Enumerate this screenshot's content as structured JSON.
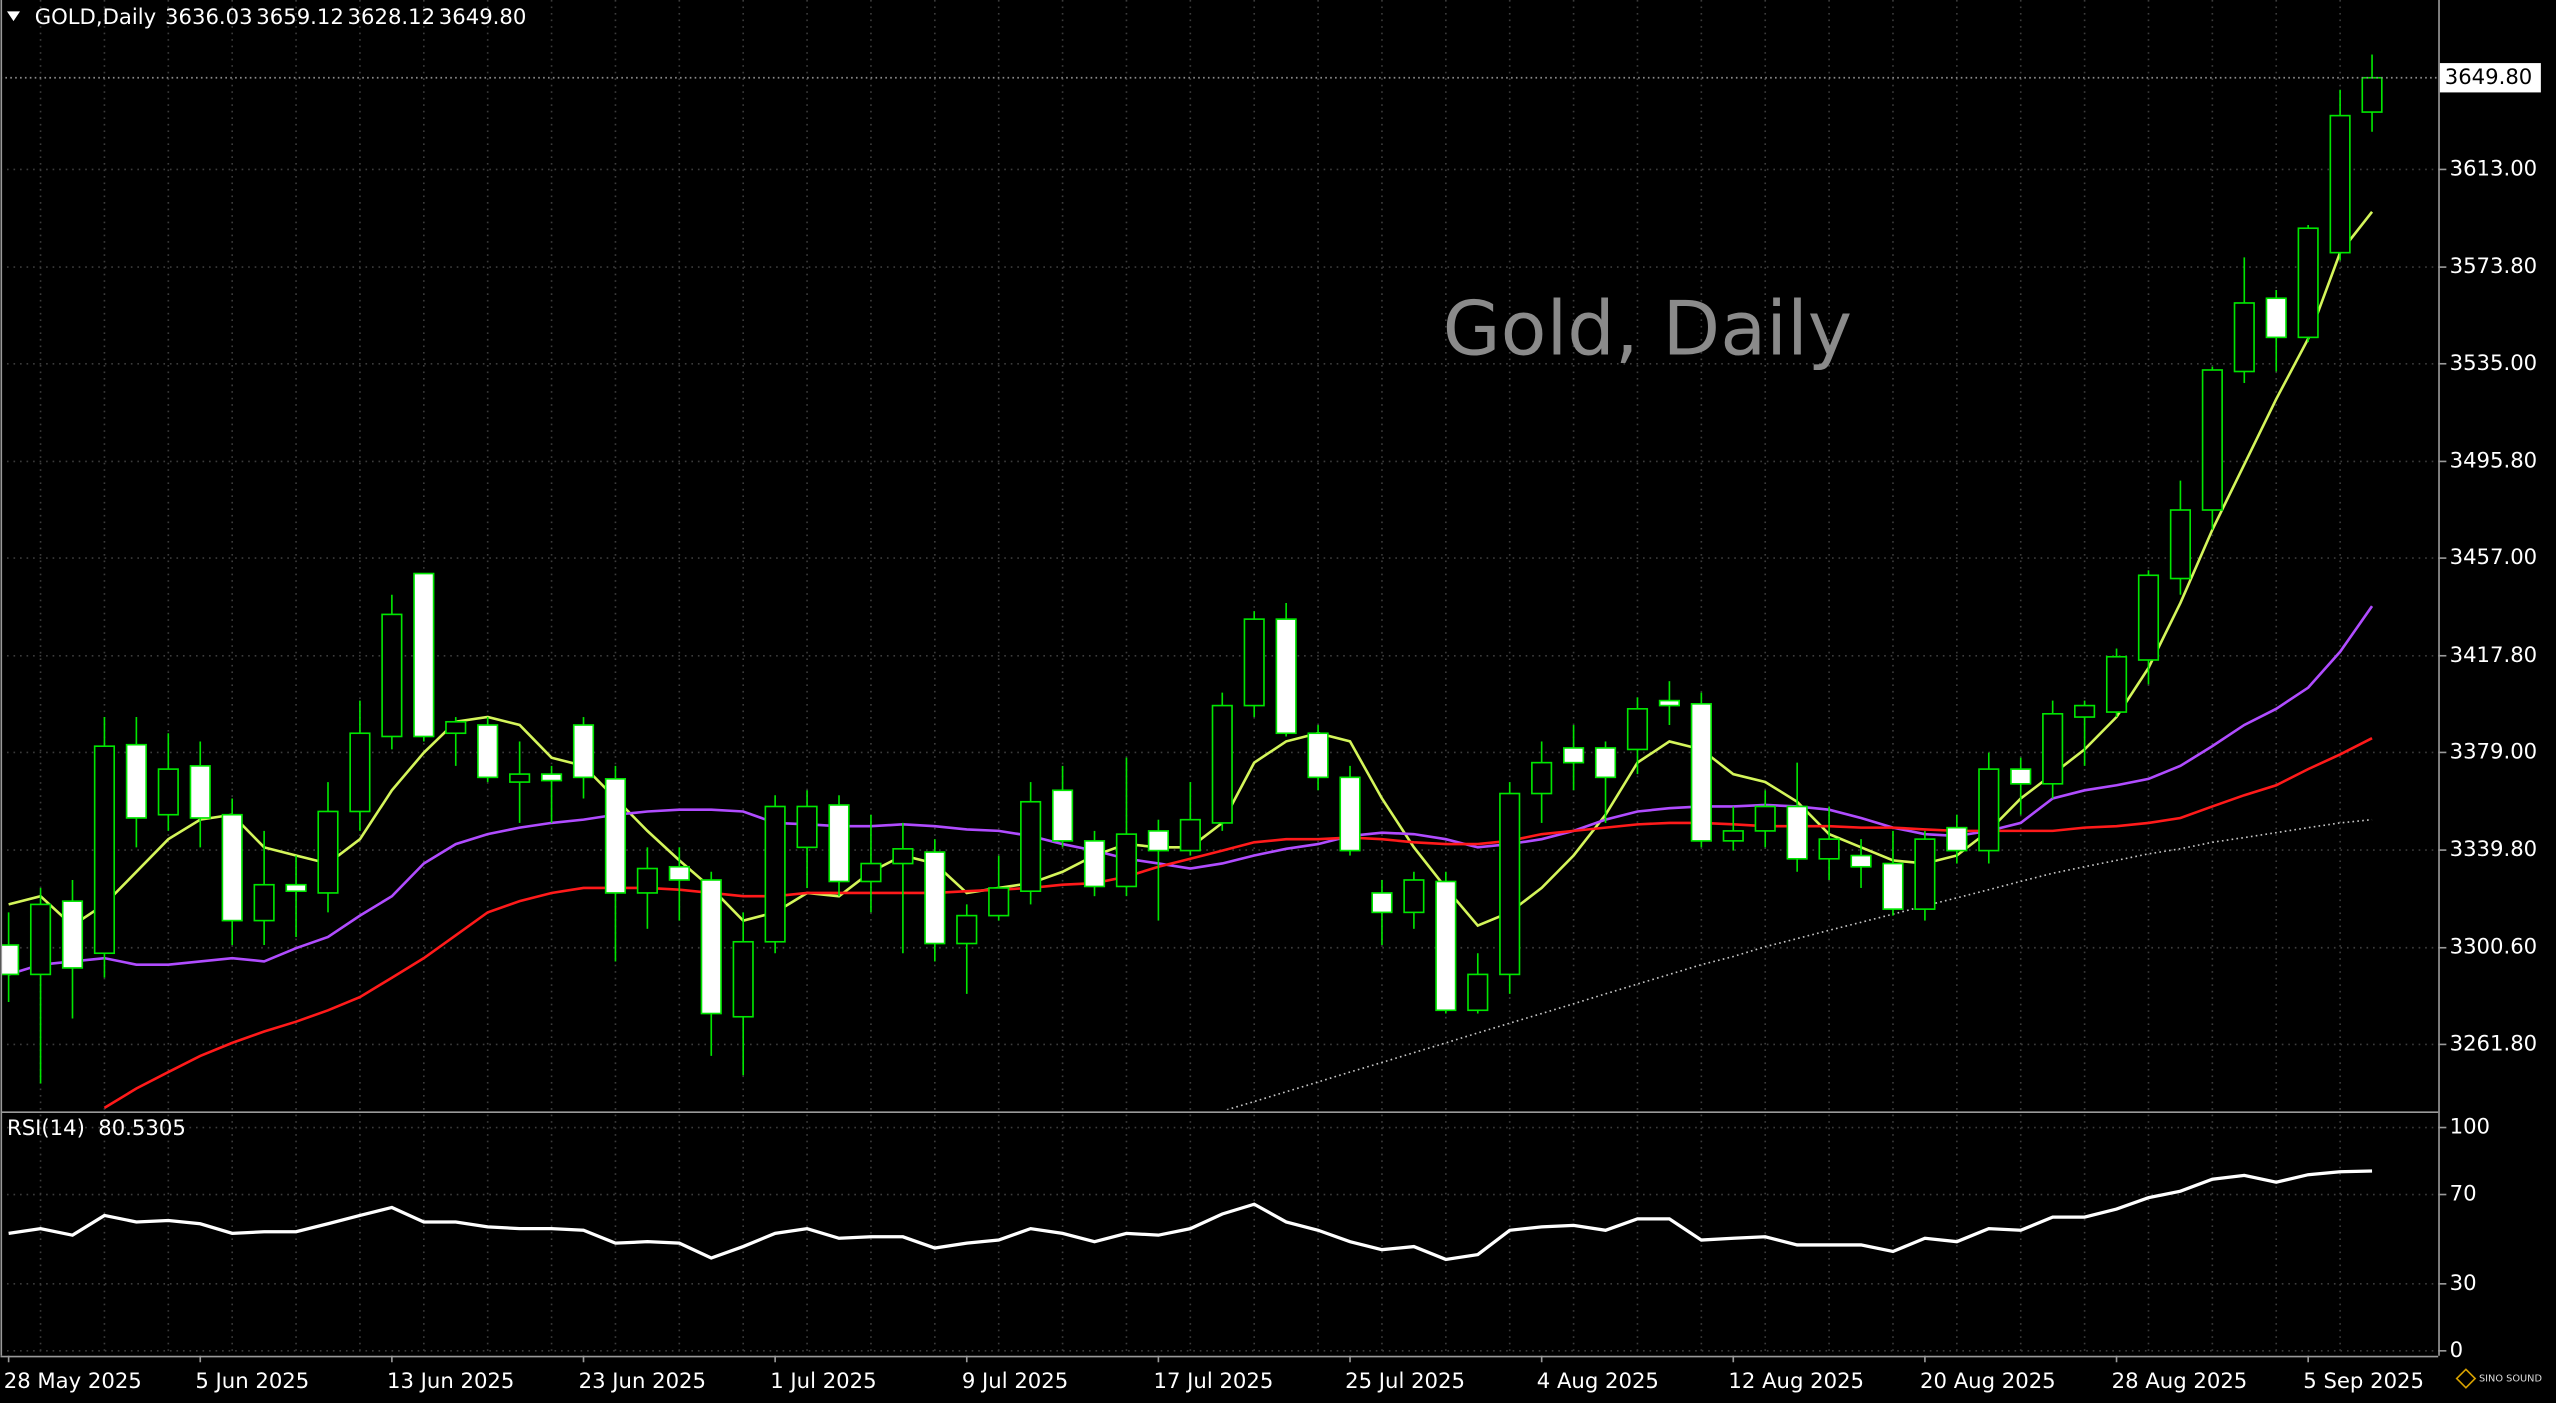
{
  "logo": "SINO SOUND",
  "chart_data": [
    {
      "type": "candlestick",
      "title": "GOLD,Daily",
      "watermark": "Gold, Daily",
      "ohlc_labels": [
        "3636.03",
        "3659.12",
        "3628.12",
        "3649.80"
      ],
      "categories": [
        "28 May 2025",
        null,
        null,
        null,
        null,
        null,
        "5 Jun 2025",
        null,
        null,
        null,
        null,
        null,
        "13 Jun 2025",
        null,
        null,
        null,
        null,
        null,
        "23 Jun 2025",
        null,
        null,
        null,
        null,
        null,
        "1 Jul 2025",
        null,
        null,
        null,
        null,
        null,
        "9 Jul 2025",
        null,
        null,
        null,
        null,
        null,
        "17 Jul 2025",
        null,
        null,
        null,
        null,
        null,
        "25 Jul 2025",
        null,
        null,
        null,
        null,
        null,
        "4 Aug 2025",
        null,
        null,
        null,
        null,
        null,
        "12 Aug 2025",
        null,
        null,
        null,
        null,
        null,
        "20 Aug 2025",
        null,
        null,
        null,
        null,
        null,
        "28 Aug 2025",
        null,
        null,
        null,
        null,
        null,
        "5 Sep 2025",
        null,
        null
      ],
      "open": [
        3301.7,
        3289.9,
        3319.3,
        3298.4,
        3382.1,
        3354.0,
        3373.6,
        3354.0,
        3311.5,
        3325.9,
        3322.6,
        3355.3,
        3385.4,
        3450.8,
        3386.7,
        3390.0,
        3367.1,
        3370.3,
        3390.0,
        3368.4,
        3322.6,
        3333.1,
        3327.8,
        3272.9,
        3303.0,
        3340.9,
        3357.9,
        3327.2,
        3334.4,
        3339.0,
        3302.3,
        3313.5,
        3323.3,
        3363.8,
        3343.5,
        3325.2,
        3347.5,
        3339.6,
        3350.7,
        3397.8,
        3432.5,
        3386.7,
        3369.0,
        3322.6,
        3314.8,
        3327.2,
        3275.5,
        3289.9,
        3362.5,
        3380.8,
        3380.8,
        3380.2,
        3399.8,
        3398.5,
        3343.5,
        3347.5,
        3357.3,
        3336.3,
        3337.6,
        3334.4,
        3316.1,
        3348.8,
        3339.6,
        3372.3,
        3366.4,
        3393.2,
        3395.2,
        3416.1,
        3448.8,
        3476.3,
        3531.9,
        3561.3,
        3545.6,
        3579.6,
        3636.03
      ],
      "high": [
        3314.8,
        3324.6,
        3327.8,
        3393.2,
        3393.2,
        3386.7,
        3383.4,
        3360.5,
        3347.5,
        3337.6,
        3367.1,
        3399.8,
        3442.3,
        3450.8,
        3393.2,
        3393.2,
        3383.4,
        3373.6,
        3393.2,
        3373.6,
        3340.9,
        3340.9,
        3331.1,
        3314.8,
        3361.8,
        3363.8,
        3361.8,
        3354.0,
        3350.7,
        3344.2,
        3318.0,
        3337.6,
        3367.1,
        3373.6,
        3347.5,
        3376.9,
        3352.0,
        3367.1,
        3403.0,
        3435.7,
        3439.0,
        3390.0,
        3373.6,
        3327.8,
        3331.1,
        3331.1,
        3298.4,
        3367.1,
        3383.4,
        3390.0,
        3383.4,
        3401.1,
        3407.6,
        3403.0,
        3357.3,
        3363.8,
        3374.9,
        3357.3,
        3344.2,
        3347.5,
        3347.5,
        3354.0,
        3378.9,
        3376.9,
        3399.8,
        3399.8,
        3420.7,
        3452.1,
        3488.1,
        3533.8,
        3577.7,
        3564.6,
        3590.7,
        3645.0,
        3659.12
      ],
      "low": [
        3278.8,
        3246.1,
        3272.2,
        3288.6,
        3340.9,
        3347.5,
        3340.9,
        3301.7,
        3301.7,
        3304.9,
        3314.8,
        3347.5,
        3380.2,
        3383.4,
        3373.6,
        3367.1,
        3350.7,
        3350.7,
        3360.5,
        3295.1,
        3308.2,
        3311.5,
        3257.2,
        3249.4,
        3298.4,
        3324.6,
        3321.3,
        3314.8,
        3298.4,
        3295.1,
        3282.1,
        3311.5,
        3318.0,
        3340.9,
        3321.3,
        3321.3,
        3311.5,
        3337.6,
        3347.5,
        3393.2,
        3385.4,
        3363.8,
        3337.6,
        3301.7,
        3308.2,
        3274.2,
        3274.2,
        3282.1,
        3350.7,
        3363.8,
        3350.7,
        3370.3,
        3390.0,
        3340.9,
        3339.6,
        3340.9,
        3331.1,
        3327.8,
        3324.6,
        3313.5,
        3311.5,
        3334.4,
        3334.4,
        3354.0,
        3360.5,
        3373.6,
        3393.2,
        3406.3,
        3442.3,
        3468.4,
        3527.3,
        3531.9,
        3543.7,
        3576.4,
        3628.12
      ],
      "close": [
        3289.9,
        3318.0,
        3292.5,
        3381.5,
        3352.7,
        3372.3,
        3352.7,
        3311.5,
        3325.9,
        3323.3,
        3355.3,
        3386.7,
        3434.4,
        3385.4,
        3391.3,
        3369.0,
        3370.3,
        3367.7,
        3369.0,
        3322.6,
        3332.4,
        3327.8,
        3274.2,
        3303.0,
        3357.3,
        3357.3,
        3327.2,
        3334.4,
        3340.3,
        3302.3,
        3313.5,
        3324.6,
        3359.2,
        3343.5,
        3325.2,
        3346.2,
        3339.6,
        3352.0,
        3397.8,
        3432.5,
        3386.7,
        3369.0,
        3339.6,
        3314.8,
        3327.8,
        3275.5,
        3289.9,
        3362.5,
        3374.9,
        3374.9,
        3369.0,
        3396.5,
        3397.8,
        3343.5,
        3347.5,
        3357.3,
        3336.3,
        3344.2,
        3333.1,
        3316.1,
        3344.2,
        3339.6,
        3372.3,
        3366.4,
        3394.5,
        3397.8,
        3417.4,
        3450.1,
        3476.3,
        3532.5,
        3559.4,
        3545.6,
        3589.4,
        3634.6,
        3649.8
      ],
      "bull_fill": "#000000",
      "bear_fill": "#ffffff",
      "candle_line": "#00e600",
      "series": [
        {
          "color": "#d4f55a",
          "values": [
            3318.0,
            3321.3,
            3309.5,
            3318.0,
            3331.1,
            3344.2,
            3352.0,
            3354.0,
            3340.9,
            3337.6,
            3334.4,
            3344.2,
            3363.8,
            3378.9,
            3391.3,
            3393.2,
            3390.0,
            3376.9,
            3373.6,
            3360.5,
            3347.5,
            3335.7,
            3324.6,
            3311.5,
            3314.8,
            3322.6,
            3321.3,
            3331.1,
            3337.6,
            3334.4,
            3322.6,
            3324.6,
            3326.5,
            3331.1,
            3337.6,
            3342.2,
            3340.9,
            3340.9,
            3350.7,
            3374.9,
            3383.4,
            3386.7,
            3383.4,
            3360.5,
            3340.9,
            3324.6,
            3309.5,
            3314.8,
            3324.6,
            3337.6,
            3354.0,
            3374.9,
            3383.4,
            3380.2,
            3370.3,
            3367.1,
            3359.2,
            3346.2,
            3340.9,
            3335.7,
            3334.4,
            3337.6,
            3347.5,
            3360.5,
            3370.3,
            3380.2,
            3393.2,
            3412.9,
            3439.0,
            3468.4,
            3494.6,
            3520.8,
            3545.0,
            3579.6,
            3596.0
          ]
        },
        {
          "color": "#b04cff",
          "values": [
            3289.9,
            3293.8,
            3295.1,
            3296.4,
            3293.8,
            3293.8,
            3295.1,
            3296.4,
            3295.1,
            3300.4,
            3304.9,
            3313.5,
            3321.3,
            3334.4,
            3342.2,
            3346.2,
            3348.8,
            3350.7,
            3352.0,
            3354.0,
            3355.3,
            3356.0,
            3356.0,
            3355.3,
            3350.7,
            3350.1,
            3349.4,
            3349.4,
            3350.1,
            3349.4,
            3348.1,
            3347.5,
            3345.5,
            3342.2,
            3339.6,
            3336.3,
            3334.4,
            3332.4,
            3334.4,
            3337.6,
            3340.3,
            3342.2,
            3345.5,
            3346.8,
            3346.2,
            3344.2,
            3340.9,
            3342.2,
            3344.2,
            3347.5,
            3352.0,
            3355.3,
            3356.6,
            3357.3,
            3357.3,
            3357.9,
            3357.3,
            3356.0,
            3352.7,
            3348.8,
            3346.2,
            3345.5,
            3347.5,
            3350.7,
            3360.5,
            3363.8,
            3365.8,
            3368.4,
            3373.6,
            3381.5,
            3390.0,
            3396.5,
            3405.0,
            3419.4,
            3437.7
          ]
        },
        {
          "color": "#ff1a1a",
          "values": [
            null,
            null,
            null,
            3236.3,
            3244.1,
            3250.7,
            3257.2,
            3262.4,
            3267.0,
            3270.9,
            3275.5,
            3280.8,
            3288.6,
            3296.4,
            3305.6,
            3314.8,
            3319.3,
            3322.6,
            3324.6,
            3324.6,
            3324.6,
            3323.9,
            3322.6,
            3321.3,
            3321.3,
            3322.6,
            3322.6,
            3322.6,
            3322.6,
            3322.6,
            3323.3,
            3323.9,
            3324.6,
            3325.9,
            3326.5,
            3329.1,
            3333.1,
            3336.3,
            3339.6,
            3342.9,
            3344.2,
            3344.2,
            3344.8,
            3344.2,
            3342.9,
            3342.2,
            3342.2,
            3343.5,
            3346.2,
            3347.5,
            3348.8,
            3350.1,
            3350.7,
            3350.7,
            3350.1,
            3349.4,
            3349.4,
            3349.4,
            3348.8,
            3348.8,
            3348.1,
            3347.5,
            3347.5,
            3347.5,
            3347.5,
            3348.8,
            3349.4,
            3350.7,
            3352.7,
            3357.3,
            3361.8,
            3365.8,
            3372.3,
            3378.2,
            3384.7
          ]
        },
        {
          "color": "#c8c8c8",
          "line_style": "dotted",
          "values": [
            null,
            null,
            null,
            null,
            null,
            null,
            null,
            null,
            null,
            null,
            null,
            null,
            null,
            null,
            null,
            null,
            null,
            null,
            null,
            null,
            null,
            null,
            null,
            null,
            null,
            null,
            null,
            null,
            null,
            null,
            null,
            null,
            null,
            null,
            null,
            null,
            null,
            null,
            3235.0,
            3238.9,
            3242.8,
            3246.7,
            3250.7,
            3254.6,
            3258.5,
            3262.4,
            3266.4,
            3270.3,
            3274.2,
            3278.1,
            3282.1,
            3286.0,
            3289.9,
            3293.8,
            3297.1,
            3301.0,
            3304.3,
            3307.6,
            3310.8,
            3314.1,
            3317.4,
            3320.6,
            3323.9,
            3327.2,
            3330.5,
            3333.1,
            3335.7,
            3338.3,
            3340.3,
            3342.9,
            3344.8,
            3346.8,
            3348.8,
            3350.7,
            3352.0
          ]
        }
      ],
      "ylim": [
        3235.6,
        3679.7
      ],
      "yticks": [
        {
          "value": 3261.8,
          "label": "3261.80"
        },
        {
          "value": 3300.6,
          "label": "3300.60"
        },
        {
          "value": 3339.8,
          "label": "3339.80"
        },
        {
          "value": 3379,
          "label": "3379.00"
        },
        {
          "value": 3417.8,
          "label": "3417.80"
        },
        {
          "value": 3457,
          "label": "3457.00"
        },
        {
          "value": 3495.8,
          "label": "3495.80"
        },
        {
          "value": 3535,
          "label": "3535.00"
        },
        {
          "value": 3573.8,
          "label": "3573.80"
        },
        {
          "value": 3613,
          "label": "3613.00"
        }
      ],
      "grid": true
    },
    {
      "type": "line",
      "title": "RSI(14)",
      "color": "#ffffff",
      "values": [
        52.6,
        54.7,
        51.8,
        60.6,
        57.7,
        58.4,
        56.9,
        52.6,
        53.3,
        53.3,
        56.9,
        60.6,
        64.2,
        57.7,
        57.7,
        55.5,
        54.7,
        54.7,
        54.0,
        48.2,
        48.9,
        48.2,
        41.6,
        46.7,
        52.6,
        54.7,
        50.4,
        51.1,
        51.1,
        46.0,
        48.2,
        49.6,
        54.7,
        52.6,
        48.9,
        52.6,
        51.8,
        54.7,
        61.3,
        65.7,
        57.7,
        54.0,
        48.9,
        45.3,
        46.7,
        40.9,
        43.1,
        54.0,
        55.5,
        56.2,
        54.0,
        59.1,
        59.1,
        49.6,
        50.4,
        51.1,
        47.4,
        47.4,
        47.4,
        44.5,
        50.4,
        48.9,
        54.7,
        54.0,
        59.9,
        59.9,
        63.5,
        68.6,
        71.5,
        76.8,
        78.6,
        75.5,
        78.9,
        80.2,
        80.5305
      ],
      "ylim": [
        -2.2,
        105.8
      ],
      "yticks": [
        0,
        30,
        70,
        100
      ],
      "grid": true
    }
  ]
}
